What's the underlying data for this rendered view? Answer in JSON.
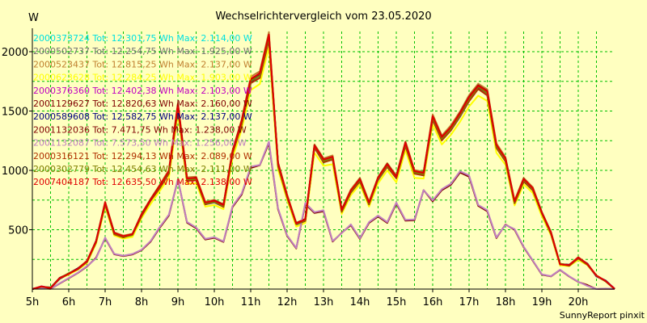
{
  "chart_data": {
    "type": "line",
    "title": "Wechselrichtervergleich vom 23.05.2020",
    "ylabel": "W",
    "footer": "SunnyReport pinxit",
    "xlim": [
      5,
      21
    ],
    "ylim": [
      0,
      2170
    ],
    "y_ticks": [
      500,
      1000,
      1500,
      2000
    ],
    "x_ticks": [
      "5h",
      "6h",
      "7h",
      "8h",
      "9h",
      "10h",
      "11h",
      "12h",
      "13h",
      "14h",
      "15h",
      "16h",
      "17h",
      "18h",
      "19h",
      "20h"
    ],
    "grid": true,
    "legend_position": "top-left",
    "x": [
      5.0,
      5.25,
      5.5,
      5.75,
      6.0,
      6.25,
      6.5,
      6.75,
      7.0,
      7.25,
      7.5,
      7.75,
      8.0,
      8.25,
      8.5,
      8.75,
      9.0,
      9.25,
      9.5,
      9.75,
      10.0,
      10.25,
      10.5,
      10.75,
      11.0,
      11.25,
      11.5,
      11.75,
      12.0,
      12.25,
      12.5,
      12.75,
      13.0,
      13.25,
      13.5,
      13.75,
      14.0,
      14.25,
      14.5,
      14.75,
      15.0,
      15.25,
      15.5,
      15.75,
      16.0,
      16.25,
      16.5,
      16.75,
      17.0,
      17.25,
      17.5,
      17.75,
      18.0,
      18.25,
      18.5,
      18.75,
      19.0,
      19.25,
      19.5,
      19.75,
      20.0,
      20.25,
      20.5,
      20.75,
      21.0
    ],
    "series": [
      {
        "name": "2000373724 Tot: 12.301,75 Wh Max: 2.114,00 W",
        "color": "#00e0e0",
        "profile": "A",
        "scale": 1.0
      },
      {
        "name": "2000502737 Tot: 12.254,75 Wh Max: 1.925,00 W",
        "color": "#707070",
        "profile": "A",
        "scale": 0.99
      },
      {
        "name": "2000523437 Tot: 12.815,25 Wh Max: 2.137,00 W",
        "color": "#c08030",
        "profile": "A",
        "scale": 1.02
      },
      {
        "name": "2000623628 Tot: 12.284,25 Wh Max: 1.903,00 W",
        "color": "#ffff00",
        "profile": "A",
        "scale": 0.96
      },
      {
        "name": "2000376360 Tot: 12.402,38 Wh Max: 2.103,00 W",
        "color": "#c000c0",
        "profile": "A",
        "scale": 1.0
      },
      {
        "name": "2001129627 Tot: 12.820,63 Wh Max: 2.160,00 W",
        "color": "#800000",
        "profile": "A",
        "scale": 1.01
      },
      {
        "name": "2000589608 Tot: 12.582,75 Wh Max: 2.137,00 W",
        "color": "#000080",
        "profile": "A",
        "scale": 1.0
      },
      {
        "name": "2001132036 Tot: 7.471,75 Wh Max: 1.238,00 W",
        "color": "#800000",
        "profile": "B",
        "scale": 1.0
      },
      {
        "name": "2001132087 Tot: 7.573,50 Wh Max: 1.256,00 W",
        "color": "#c080c0",
        "profile": "B",
        "scale": 1.01
      },
      {
        "name": "2000316121 Tot: 12.294,13 Wh Max: 2.089,00 W",
        "color": "#b03000",
        "profile": "A",
        "scale": 0.99
      },
      {
        "name": "2000302779 Tot: 12.454,63 Wh Max: 2.111,00 W",
        "color": "#808000",
        "profile": "A",
        "scale": 1.0
      },
      {
        "name": "2007404187 Tot: 12.635,50 Wh Max: 2.138,00 W",
        "color": "#e00000",
        "profile": "A",
        "scale": 1.01
      }
    ],
    "profiles": {
      "A": [
        0,
        20,
        10,
        90,
        130,
        170,
        230,
        400,
        720,
        470,
        440,
        460,
        620,
        750,
        860,
        980,
        1540,
        920,
        930,
        720,
        740,
        700,
        1150,
        1400,
        1750,
        1800,
        2120,
        1050,
        780,
        550,
        580,
        1200,
        1080,
        1100,
        660,
        820,
        920,
        720,
        930,
        1040,
        940,
        1220,
        980,
        970,
        1440,
        1270,
        1350,
        1470,
        1600,
        1700,
        1650,
        1200,
        1090,
        730,
        920,
        840,
        640,
        470,
        210,
        200,
        260,
        210,
        110,
        70,
        0
      ],
      "B": [
        0,
        10,
        0,
        50,
        90,
        140,
        190,
        260,
        430,
        290,
        280,
        290,
        330,
        400,
        520,
        620,
        920,
        560,
        510,
        420,
        430,
        400,
        690,
        800,
        1020,
        1040,
        1230,
        670,
        450,
        340,
        720,
        640,
        660,
        400,
        470,
        540,
        420,
        560,
        610,
        560,
        720,
        580,
        580,
        830,
        740,
        830,
        880,
        980,
        950,
        700,
        660,
        430,
        540,
        500,
        350,
        240,
        120,
        110,
        160,
        110,
        60,
        30,
        0,
        0,
        0
      ]
    }
  }
}
